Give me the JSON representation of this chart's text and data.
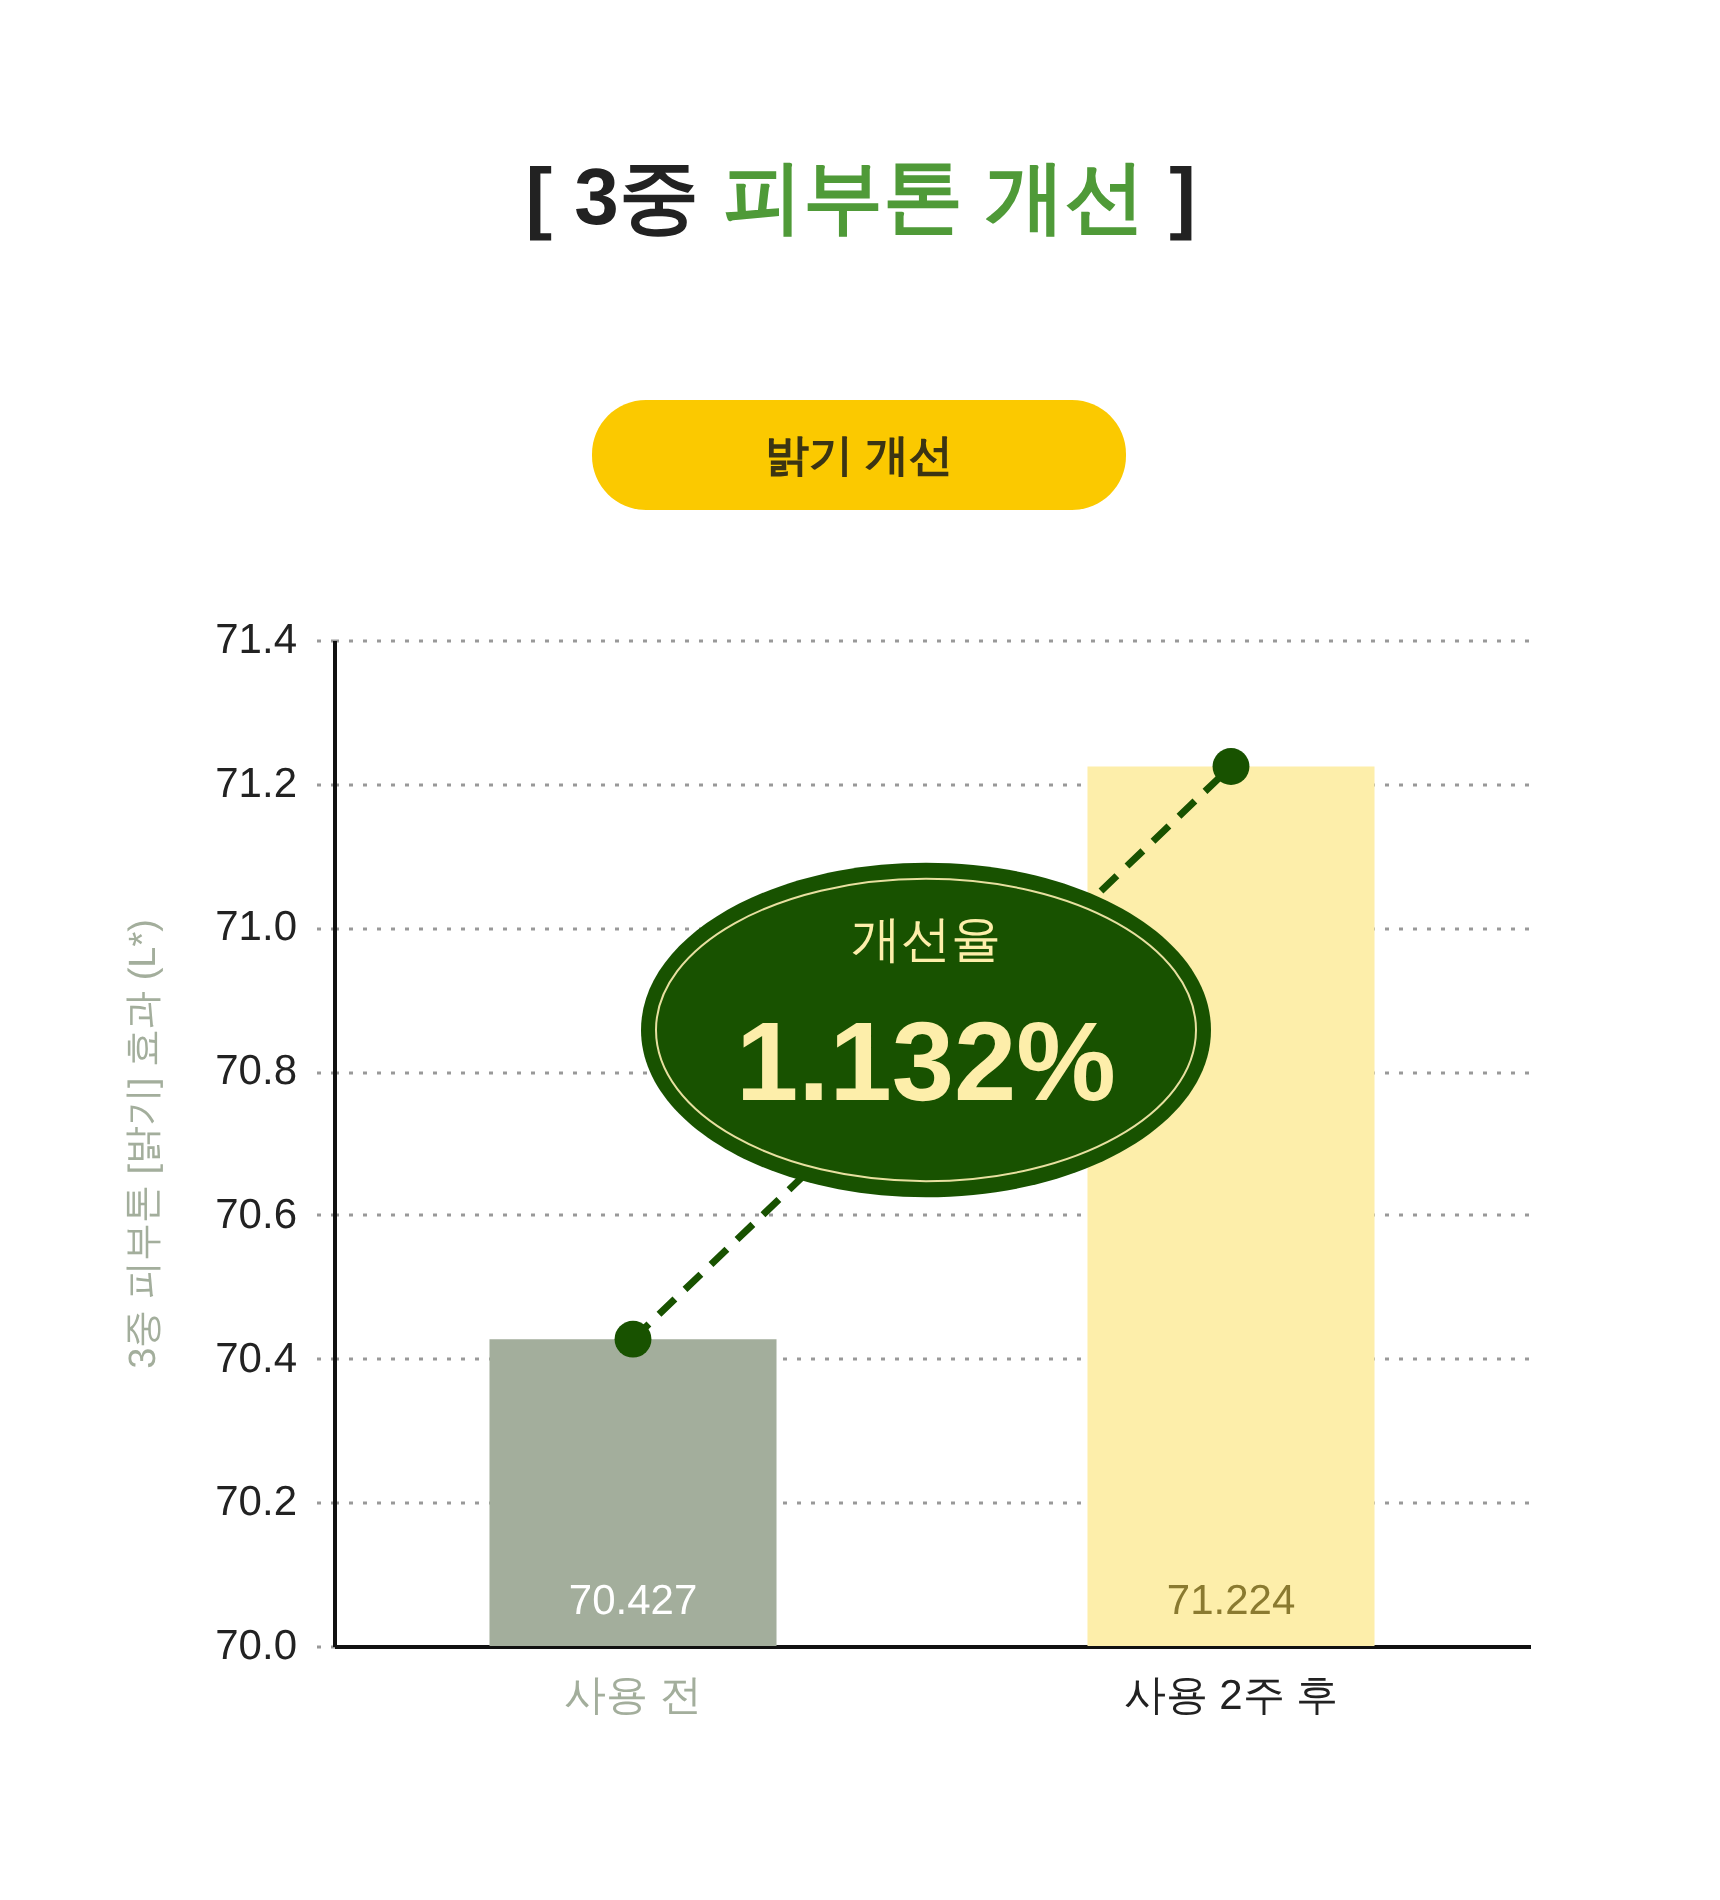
{
  "chart_data": {
    "type": "bar",
    "title": "[ 3중 피부톤 개선 ]",
    "subtitle": "밝기 개선",
    "ylabel": "3중 피부톤 [밝기] 효과 (L*)",
    "categories": [
      "사용 전",
      "사용 2주 후"
    ],
    "series": [
      {
        "colors": [
          "#a3ae9c",
          "#fdeeaa"
        ],
        "values": [
          70.427,
          71.224
        ],
        "value_labels": [
          "70.427",
          "71.224"
        ]
      },
      {
        "type": "line",
        "color": "#185200",
        "values": [
          70.427,
          71.224
        ]
      }
    ],
    "ylim": [
      70,
      71.4
    ],
    "yticks": [
      {
        "value": 70,
        "label": "70.0"
      },
      70.2,
      70.4,
      70.6,
      70.8,
      {
        "value": 71,
        "label": "71.0"
      },
      71.2,
      71.4
    ],
    "grid": "y",
    "marker": "circle",
    "line_style": "dashed",
    "annotations": [
      "개선율",
      "1.132%"
    ]
  }
}
